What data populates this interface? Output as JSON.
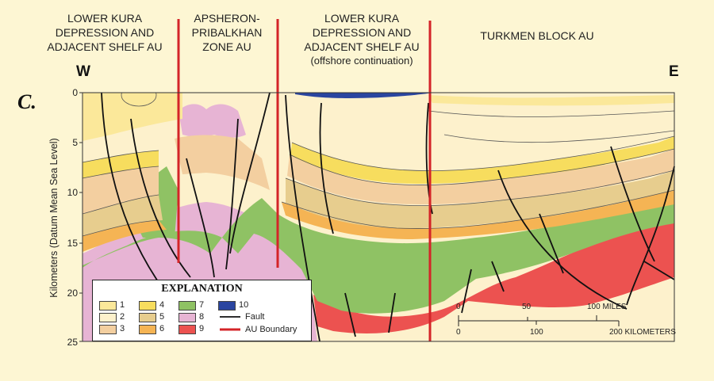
{
  "au_labels": [
    {
      "lines": [
        "LOWER KURA",
        "DEPRESSION AND",
        "ADJACENT SHELF AU"
      ]
    },
    {
      "lines": [
        "APSHERON-",
        "PRIBALKHAN",
        "ZONE AU"
      ]
    },
    {
      "lines": [
        "LOWER KURA",
        "DEPRESSION AND",
        "ADJACENT SHELF AU"
      ],
      "sub": "(offshore continuation)"
    },
    {
      "lines": [
        "TURKMEN BLOCK AU"
      ]
    }
  ],
  "directions": {
    "west": "W",
    "east": "E"
  },
  "panel_label": "C.",
  "y_axis": {
    "label": "Kilometers (Datum Mean Sea Level)",
    "ticks": [
      "0",
      "5",
      "10",
      "15",
      "20",
      "25"
    ]
  },
  "legend": {
    "title": "EXPLANATION",
    "units": [
      {
        "num": "1",
        "color": "#fbe89a"
      },
      {
        "num": "2",
        "color": "#fdf1cc"
      },
      {
        "num": "3",
        "color": "#f3cfa0"
      },
      {
        "num": "4",
        "color": "#f7dd5e"
      },
      {
        "num": "5",
        "color": "#e7cd8e"
      },
      {
        "num": "6",
        "color": "#f5b454"
      },
      {
        "num": "7",
        "color": "#8fc264"
      },
      {
        "num": "8",
        "color": "#e7b4d4"
      },
      {
        "num": "9",
        "color": "#ec5250"
      },
      {
        "num": "10",
        "color": "#2a45a0"
      }
    ],
    "fault_label": "Fault",
    "boundary_label": "AU Boundary"
  },
  "scale": {
    "miles_ticks": [
      "0",
      "50",
      "100 MILES"
    ],
    "km_ticks": [
      "0",
      "100",
      "200 KILOMETERS"
    ]
  }
}
